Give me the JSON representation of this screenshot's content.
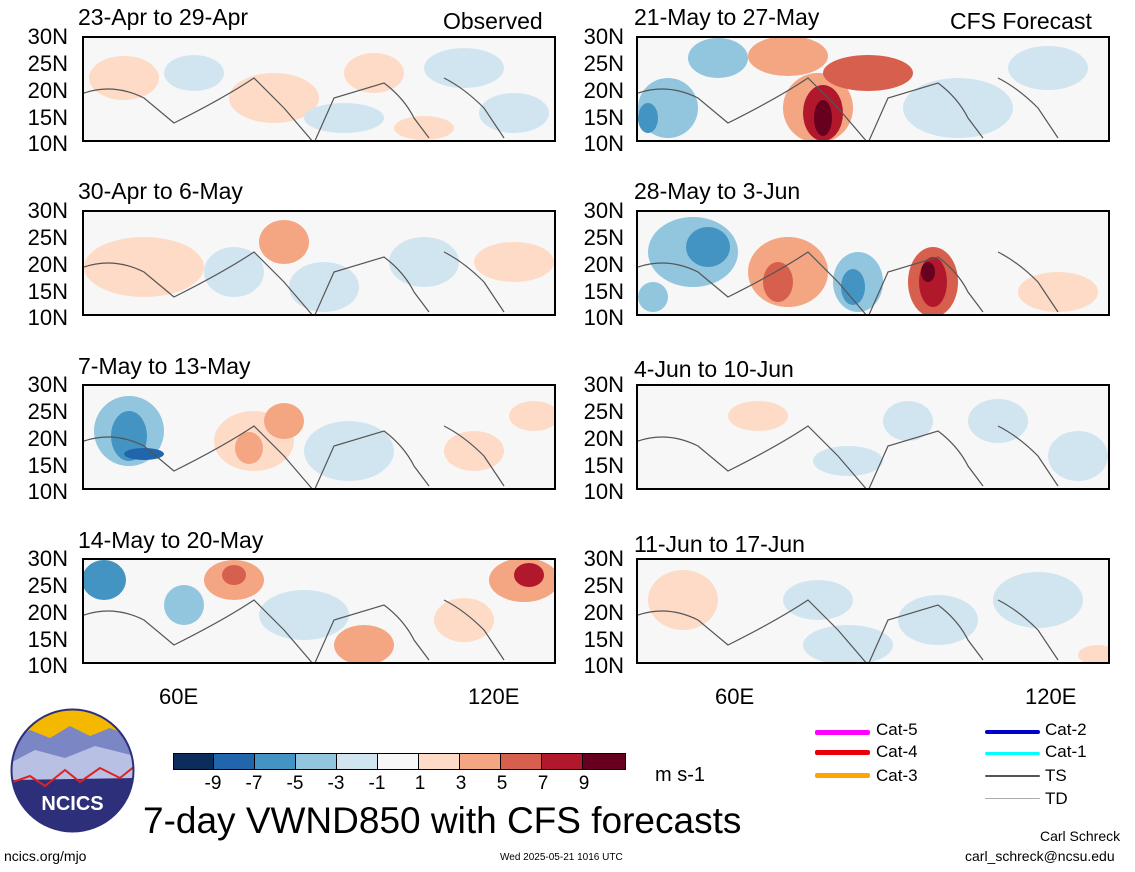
{
  "panels": {
    "left": [
      {
        "title": "23-Apr to 29-Apr",
        "tag": "Observed"
      },
      {
        "title": "30-Apr to 6-May",
        "tag": ""
      },
      {
        "title": "7-May to 13-May",
        "tag": ""
      },
      {
        "title": "14-May to 20-May",
        "tag": ""
      }
    ],
    "right": [
      {
        "title": "21-May to 27-May",
        "tag": "CFS Forecast"
      },
      {
        "title": "28-May to 3-Jun",
        "tag": ""
      },
      {
        "title": "4-Jun to 10-Jun",
        "tag": ""
      },
      {
        "title": "11-Jun to 17-Jun",
        "tag": ""
      }
    ]
  },
  "axes": {
    "lat_labels": [
      "30N",
      "25N",
      "20N",
      "15N",
      "10N"
    ],
    "lon_labels": [
      "60E",
      "120E"
    ]
  },
  "colorbar": {
    "labels": [
      "-9",
      "-7",
      "-5",
      "-3",
      "-1",
      "1",
      "3",
      "5",
      "7",
      "9"
    ],
    "colors": [
      "#0a2d5c",
      "#2166ac",
      "#4393c3",
      "#92c5de",
      "#d1e5f0",
      "#f7f7f7",
      "#fddbc7",
      "#f4a582",
      "#d6604d",
      "#b2182b",
      "#67001f"
    ],
    "unit": "m s-1"
  },
  "legend": [
    {
      "label": "Cat-5",
      "color": "#ff00ff"
    },
    {
      "label": "Cat-4",
      "color": "#e8000b"
    },
    {
      "label": "Cat-3",
      "color": "#ffa500"
    },
    {
      "label": "Cat-2",
      "color": "#0000cd"
    },
    {
      "label": "Cat-1",
      "color": "#00ffff"
    },
    {
      "label": "TS",
      "color": "#555555"
    },
    {
      "label": "TD",
      "color": "#aaaaaa"
    }
  ],
  "logo": {
    "text": "NCICS"
  },
  "main_title": "7-day VWND850 with CFS forecasts",
  "footer": {
    "left": "ncics.org/mjo",
    "center": "Wed 2025-05-21 1016 UTC",
    "author": "Carl Schreck",
    "email": "carl_schreck@ncsu.edu"
  }
}
